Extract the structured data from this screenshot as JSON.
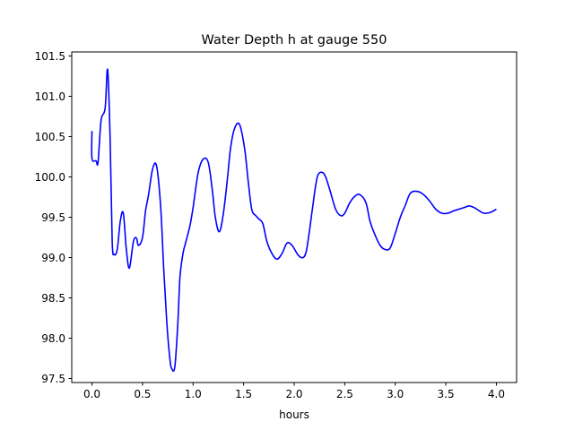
{
  "chart_data": {
    "type": "line",
    "title": "Water Depth h at gauge 550",
    "xlabel": "hours",
    "ylabel": "",
    "xlim": [
      -0.2,
      4.2
    ],
    "ylim": [
      97.45,
      101.55
    ],
    "xticks": [
      0.0,
      0.5,
      1.0,
      1.5,
      2.0,
      2.5,
      3.0,
      3.5,
      4.0
    ],
    "xtick_labels": [
      "0.0",
      "0.5",
      "1.0",
      "1.5",
      "2.0",
      "2.5",
      "3.0",
      "3.5",
      "4.0"
    ],
    "yticks": [
      97.5,
      98.0,
      98.5,
      99.0,
      99.5,
      100.0,
      100.5,
      101.0,
      101.5
    ],
    "ytick_labels": [
      "97.5",
      "98.0",
      "98.5",
      "99.0",
      "99.5",
      "100.0",
      "100.5",
      "101.0",
      "101.5"
    ],
    "grid": false,
    "series": [
      {
        "color": "#0000ff",
        "x": [
          0.0,
          0.0,
          0.04,
          0.06,
          0.09,
          0.13,
          0.155,
          0.18,
          0.2,
          0.22,
          0.25,
          0.28,
          0.31,
          0.34,
          0.37,
          0.41,
          0.44,
          0.46,
          0.5,
          0.53,
          0.56,
          0.6,
          0.64,
          0.68,
          0.71,
          0.74,
          0.77,
          0.79,
          0.82,
          0.85,
          0.87,
          0.9,
          0.93,
          0.97,
          1.0,
          1.05,
          1.1,
          1.15,
          1.19,
          1.22,
          1.26,
          1.3,
          1.34,
          1.37,
          1.41,
          1.46,
          1.51,
          1.545,
          1.58,
          1.62,
          1.65,
          1.69,
          1.73,
          1.78,
          1.83,
          1.88,
          1.93,
          1.98,
          2.04,
          2.09,
          2.12,
          2.15,
          2.18,
          2.22,
          2.25,
          2.3,
          2.35,
          2.41,
          2.46,
          2.5,
          2.55,
          2.6,
          2.65,
          2.71,
          2.75,
          2.8,
          2.85,
          2.9,
          2.95,
          3.0,
          3.05,
          3.1,
          3.15,
          3.22,
          3.28,
          3.34,
          3.4,
          3.46,
          3.52,
          3.58,
          3.63,
          3.68,
          3.73,
          3.78,
          3.83,
          3.88,
          3.94,
          4.0
        ],
        "y": [
          100.57,
          100.23,
          100.2,
          100.18,
          100.7,
          100.85,
          101.33,
          100.45,
          99.2,
          99.04,
          99.1,
          99.45,
          99.55,
          99.1,
          98.87,
          99.2,
          99.24,
          99.15,
          99.25,
          99.58,
          99.78,
          100.1,
          100.13,
          99.62,
          98.85,
          98.2,
          97.75,
          97.62,
          97.65,
          98.2,
          98.75,
          99.05,
          99.2,
          99.4,
          99.62,
          100.05,
          100.22,
          100.18,
          99.84,
          99.5,
          99.32,
          99.55,
          99.98,
          100.35,
          100.6,
          100.65,
          100.35,
          99.95,
          99.6,
          99.52,
          99.48,
          99.42,
          99.2,
          99.05,
          98.98,
          99.05,
          99.18,
          99.15,
          99.03,
          99.0,
          99.08,
          99.32,
          99.6,
          99.95,
          100.05,
          100.03,
          99.85,
          99.6,
          99.52,
          99.55,
          99.68,
          99.76,
          99.78,
          99.68,
          99.45,
          99.28,
          99.15,
          99.1,
          99.12,
          99.3,
          99.5,
          99.65,
          99.8,
          99.82,
          99.78,
          99.7,
          99.6,
          99.55,
          99.55,
          99.58,
          99.6,
          99.62,
          99.64,
          99.62,
          99.58,
          99.55,
          99.56,
          99.6
        ]
      }
    ]
  }
}
